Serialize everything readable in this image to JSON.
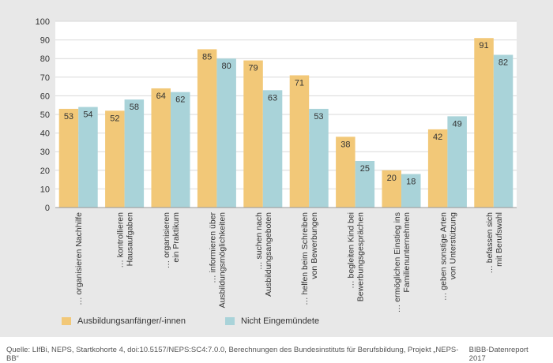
{
  "chart_data": {
    "type": "bar",
    "categories": [
      [
        "… organisieren Nachhilfe"
      ],
      [
        "… kontrollieren",
        "Hausaufgaben"
      ],
      [
        "… organisieren",
        "ein Praktikum"
      ],
      [
        "… informieren über",
        "Ausbildungsmöglichkeiten"
      ],
      [
        "… suchen nach",
        "Ausbildungsangeboten"
      ],
      [
        "… helfen beim Schreiben",
        "von Bewerbungen"
      ],
      [
        "… begleiten Kind bei",
        "Bewerbungsgesprächen"
      ],
      [
        "… ermöglichen Einstieg ins",
        "Familienunternehmen"
      ],
      [
        "… geben sonstige Arten",
        "von Unterstützung"
      ],
      [
        "… befassen sich",
        "mit Berufswahl"
      ]
    ],
    "series": [
      {
        "name": "Ausbildungsanfänger/-innen",
        "color": "#f2c878",
        "values": [
          53,
          52,
          64,
          85,
          79,
          71,
          38,
          20,
          42,
          91
        ]
      },
      {
        "name": "Nicht Eingemündete",
        "color": "#a9d3d9",
        "values": [
          54,
          58,
          62,
          80,
          63,
          53,
          25,
          18,
          49,
          82
        ]
      }
    ],
    "ylim": [
      0,
      100
    ],
    "yticks": [
      0,
      10,
      20,
      30,
      40,
      50,
      60,
      70,
      80,
      90,
      100
    ],
    "grid": true,
    "legend_position": "bottom-left"
  },
  "footer": {
    "source": "Quelle: LIfBi, NEPS, Startkohorte 4, doi:10.5157/NEPS:SC4:7.0.0, Berechnungen des Bundesinstituts für Berufsbildung, Projekt „NEPS-BB“",
    "report": "BIBB-Datenreport 2017"
  }
}
